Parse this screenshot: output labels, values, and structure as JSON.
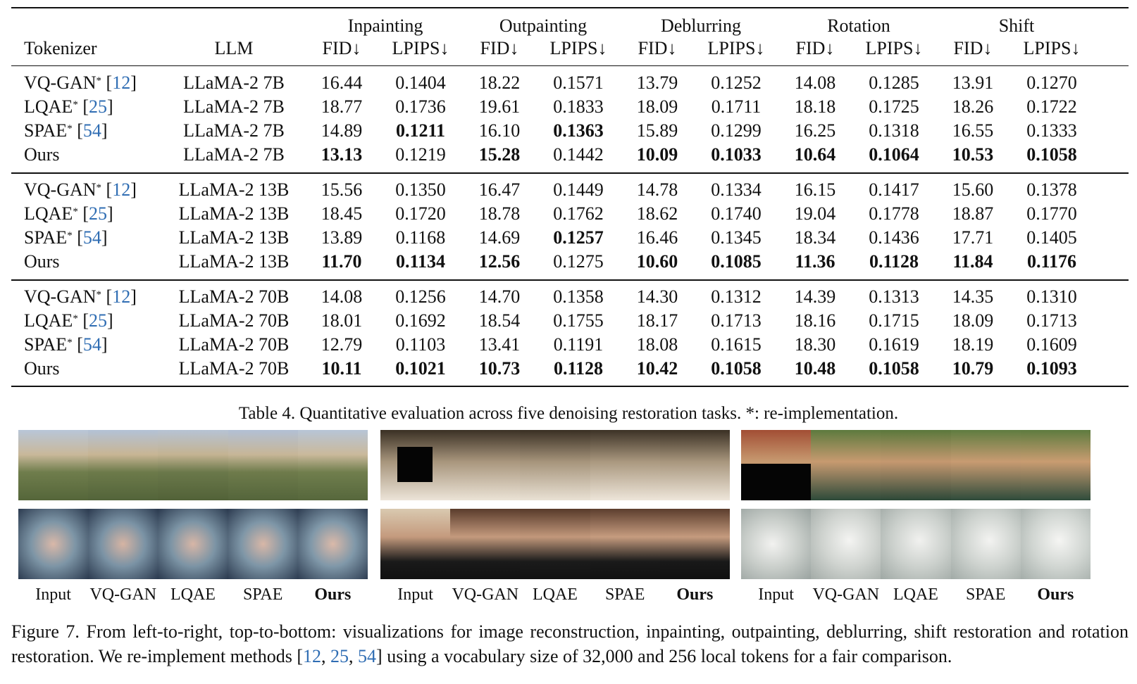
{
  "table": {
    "col_headers": {
      "tokenizer": "Tokenizer",
      "llm": "LLM",
      "tasks": [
        "Inpainting",
        "Outpainting",
        "Deblurring",
        "Rotation",
        "Shift"
      ],
      "metrics": [
        "FID↓",
        "LPIPS↓"
      ]
    },
    "groups": [
      {
        "rows": [
          {
            "method": "VQ-GAN",
            "star": "*",
            "cite": "12",
            "llm": "LLaMA-2 7B",
            "values": [
              "16.44",
              "0.1404",
              "18.22",
              "0.1571",
              "13.79",
              "0.1252",
              "14.08",
              "0.1285",
              "13.91",
              "0.1270"
            ],
            "bold": []
          },
          {
            "method": "LQAE",
            "star": "*",
            "cite": "25",
            "llm": "LLaMA-2 7B",
            "values": [
              "18.77",
              "0.1736",
              "19.61",
              "0.1833",
              "18.09",
              "0.1711",
              "18.18",
              "0.1725",
              "18.26",
              "0.1722"
            ],
            "bold": []
          },
          {
            "method": "SPAE",
            "star": "*",
            "cite": "54",
            "llm": "LLaMA-2 7B",
            "values": [
              "14.89",
              "0.1211",
              "16.10",
              "0.1363",
              "15.89",
              "0.1299",
              "16.25",
              "0.1318",
              "16.55",
              "0.1333"
            ],
            "bold": [
              1,
              3
            ]
          },
          {
            "method": "Ours",
            "star": "",
            "cite": "",
            "llm": "LLaMA-2 7B",
            "values": [
              "13.13",
              "0.1219",
              "15.28",
              "0.1442",
              "10.09",
              "0.1033",
              "10.64",
              "0.1064",
              "10.53",
              "0.1058"
            ],
            "bold": [
              0,
              2,
              4,
              5,
              6,
              7,
              8,
              9
            ]
          }
        ]
      },
      {
        "rows": [
          {
            "method": "VQ-GAN",
            "star": "*",
            "cite": "12",
            "llm": "LLaMA-2 13B",
            "values": [
              "15.56",
              "0.1350",
              "16.47",
              "0.1449",
              "14.78",
              "0.1334",
              "16.15",
              "0.1417",
              "15.60",
              "0.1378"
            ],
            "bold": []
          },
          {
            "method": "LQAE",
            "star": "*",
            "cite": "25",
            "llm": "LLaMA-2 13B",
            "values": [
              "18.45",
              "0.1720",
              "18.78",
              "0.1762",
              "18.62",
              "0.1740",
              "19.04",
              "0.1778",
              "18.87",
              "0.1770"
            ],
            "bold": []
          },
          {
            "method": "SPAE",
            "star": "*",
            "cite": "54",
            "llm": "LLaMA-2 13B",
            "values": [
              "13.89",
              "0.1168",
              "14.69",
              "0.1257",
              "16.46",
              "0.1345",
              "18.34",
              "0.1436",
              "17.71",
              "0.1405"
            ],
            "bold": [
              3
            ]
          },
          {
            "method": "Ours",
            "star": "",
            "cite": "",
            "llm": "LLaMA-2 13B",
            "values": [
              "11.70",
              "0.1134",
              "12.56",
              "0.1275",
              "10.60",
              "0.1085",
              "11.36",
              "0.1128",
              "11.84",
              "0.1176"
            ],
            "bold": [
              0,
              1,
              2,
              4,
              5,
              6,
              7,
              8,
              9
            ]
          }
        ]
      },
      {
        "rows": [
          {
            "method": "VQ-GAN",
            "star": "*",
            "cite": "12",
            "llm": "LLaMA-2 70B",
            "values": [
              "14.08",
              "0.1256",
              "14.70",
              "0.1358",
              "14.30",
              "0.1312",
              "14.39",
              "0.1313",
              "14.35",
              "0.1310"
            ],
            "bold": []
          },
          {
            "method": "LQAE",
            "star": "*",
            "cite": "25",
            "llm": "LLaMA-2 70B",
            "values": [
              "18.01",
              "0.1692",
              "18.54",
              "0.1755",
              "18.17",
              "0.1713",
              "18.16",
              "0.1715",
              "18.09",
              "0.1713"
            ],
            "bold": []
          },
          {
            "method": "SPAE",
            "star": "*",
            "cite": "54",
            "llm": "LLaMA-2 70B",
            "values": [
              "12.79",
              "0.1103",
              "13.41",
              "0.1191",
              "18.08",
              "0.1615",
              "18.30",
              "0.1619",
              "18.19",
              "0.1609"
            ],
            "bold": []
          },
          {
            "method": "Ours",
            "star": "",
            "cite": "",
            "llm": "LLaMA-2 70B",
            "values": [
              "10.11",
              "0.1021",
              "10.73",
              "0.1128",
              "10.42",
              "0.1058",
              "10.48",
              "0.1058",
              "10.79",
              "0.1093"
            ],
            "bold": [
              0,
              1,
              2,
              3,
              4,
              5,
              6,
              7,
              8,
              9
            ]
          }
        ]
      }
    ],
    "caption": "Table 4. Quantitative evaluation across five denoising restoration tasks. *: re-implementation."
  },
  "figure": {
    "column_labels": [
      "Input",
      "VQ-GAN",
      "LQAE",
      "SPAE",
      "Ours"
    ],
    "bold_label": "Ours",
    "caption_part1": "Figure 7. From left-to-right, top-to-bottom: visualizations for image reconstruction, inpainting, outpainting, deblurring, shift restoration and rotation restoration. We re-implement methods [",
    "caption_cite1": "12",
    "caption_sep1": ", ",
    "caption_cite2": "25",
    "caption_sep2": ", ",
    "caption_cite3": "54",
    "caption_part2": "] using a vocabulary size of 32,000 and 256 local tokens for a fair comparison."
  }
}
